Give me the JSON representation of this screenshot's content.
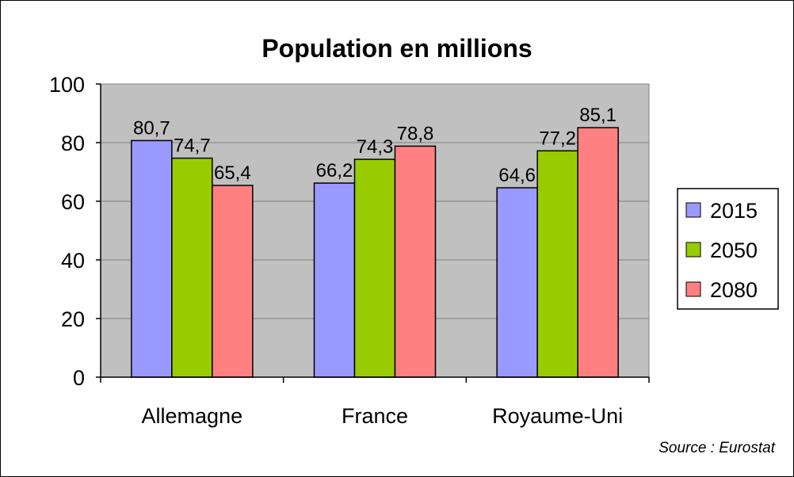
{
  "chart_data": {
    "type": "bar",
    "title": "Population en millions",
    "categories": [
      "Allemagne",
      "France",
      "Royaume-Uni"
    ],
    "series": [
      {
        "name": "2015",
        "values": [
          80.7,
          66.2,
          64.6
        ],
        "labels": [
          "80,7",
          "66,2",
          "64,6"
        ],
        "color": "#9999ff"
      },
      {
        "name": "2050",
        "values": [
          74.7,
          74.3,
          77.2
        ],
        "labels": [
          "74,7",
          "74,3",
          "77,2"
        ],
        "color": "#99cc00"
      },
      {
        "name": "2080",
        "values": [
          65.4,
          78.8,
          85.1
        ],
        "labels": [
          "65,4",
          "78,8",
          "85,1"
        ],
        "color": "#ff8080"
      }
    ],
    "ylim": [
      0,
      100
    ],
    "yticks": [
      0,
      20,
      40,
      60,
      80,
      100
    ],
    "grid": true,
    "plot_background": "#c0c0c0",
    "legend_position": "right",
    "source": "Source : Eurostat"
  }
}
